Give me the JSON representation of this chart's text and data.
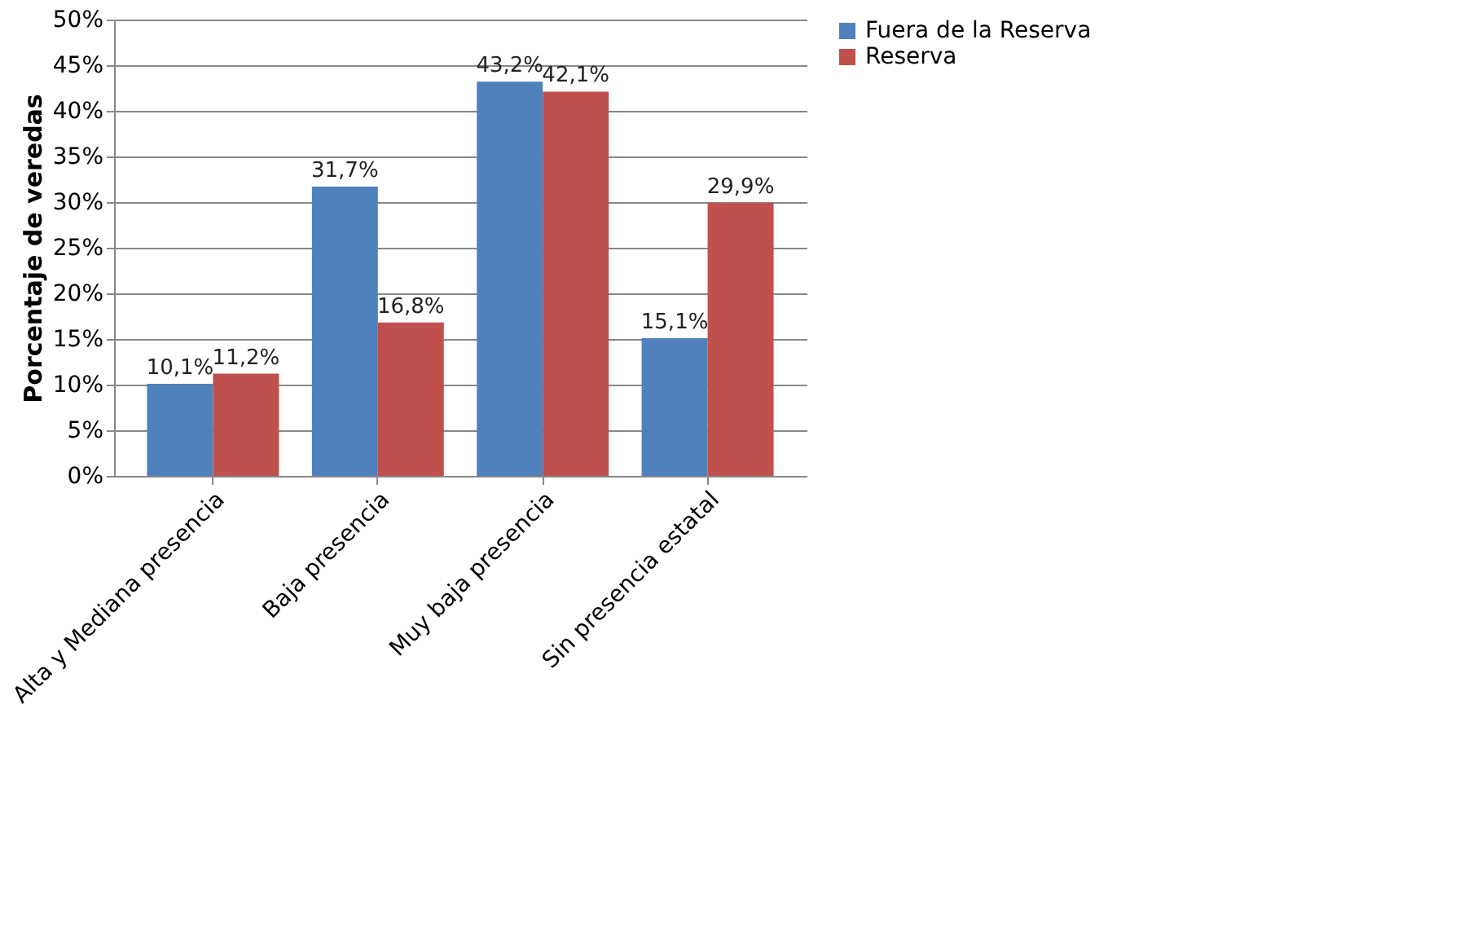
{
  "chart_data": {
    "type": "bar",
    "categories": [
      "Alta y Mediana presencia",
      "Baja presencia",
      "Muy baja presencia",
      "Sin presencia estatal"
    ],
    "series": [
      {
        "name": "Fuera de la Reserva",
        "color": "#4f81bd",
        "values": [
          10.1,
          31.7,
          43.2,
          15.1
        ],
        "value_labels": [
          "10,1%",
          "31,7%",
          "43,2%",
          "15,1%"
        ]
      },
      {
        "name": "Reserva",
        "color": "#c0504d",
        "values": [
          11.2,
          16.8,
          42.1,
          29.9
        ],
        "value_labels": [
          "11,2%",
          "16,8%",
          "42,1%",
          "29,9%"
        ]
      }
    ],
    "ylabel": "Porcentaje de veredas",
    "ylim": [
      0,
      50
    ],
    "yticks": [
      {
        "value": 0,
        "label": "0%"
      },
      {
        "value": 5,
        "label": "5%"
      },
      {
        "value": 10,
        "label": "10%"
      },
      {
        "value": 15,
        "label": "15%"
      },
      {
        "value": 20,
        "label": "20%"
      },
      {
        "value": 25,
        "label": "25%"
      },
      {
        "value": 30,
        "label": "30%"
      },
      {
        "value": 35,
        "label": "35%"
      },
      {
        "value": 40,
        "label": "40%"
      },
      {
        "value": 45,
        "label": "45%"
      },
      {
        "value": 50,
        "label": "50%"
      }
    ],
    "grid": "y",
    "legend": "right"
  }
}
